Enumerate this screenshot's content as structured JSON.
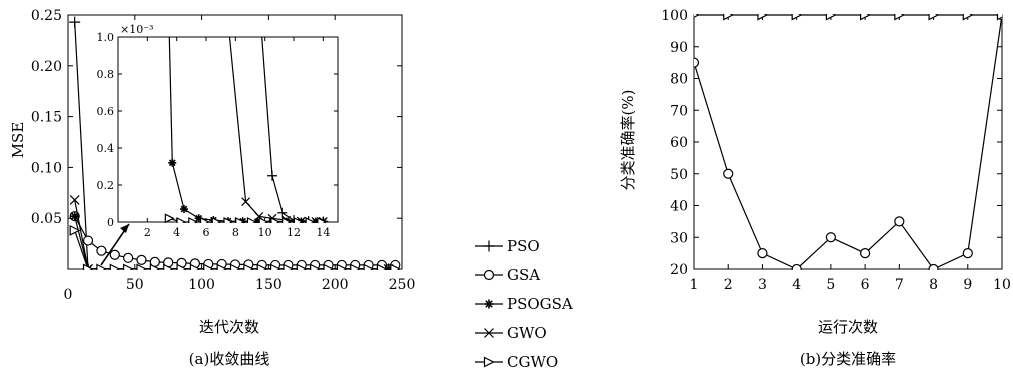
{
  "chart_data": [
    {
      "type": "line",
      "caption": "(a)收敛曲线",
      "xlabel": "迭代次数",
      "ylabel": "MSE",
      "xlim": [
        0,
        250
      ],
      "ylim": [
        0,
        0.25
      ],
      "xticks": [
        "0",
        "50",
        "100",
        "150",
        "200",
        "250"
      ],
      "yticks": [
        "0.05",
        "0.10",
        "0.15",
        "0.20",
        "0.25"
      ],
      "series": [
        {
          "name": "PSO",
          "marker": "plus",
          "x": [
            5,
            15,
            240
          ],
          "y": [
            0.243,
            0.0003,
            0.0001
          ]
        },
        {
          "name": "GSA",
          "marker": "circle",
          "x": [
            5,
            15,
            25,
            35,
            45,
            55,
            65,
            75,
            85,
            95,
            105,
            115,
            125,
            135,
            145,
            155,
            165,
            175,
            185,
            195,
            205,
            215,
            225,
            235,
            245
          ],
          "y": [
            0.052,
            0.028,
            0.018,
            0.014,
            0.011,
            0.009,
            0.007,
            0.0065,
            0.006,
            0.0055,
            0.005,
            0.005,
            0.0045,
            0.0045,
            0.004,
            0.004,
            0.004,
            0.004,
            0.004,
            0.004,
            0.004,
            0.004,
            0.004,
            0.004,
            0.004
          ]
        },
        {
          "name": "PSOGSA",
          "marker": "star",
          "x": [
            5,
            15,
            240
          ],
          "y": [
            0.052,
            0.0002,
            0.0001
          ]
        },
        {
          "name": "GWO",
          "marker": "x",
          "x": [
            5,
            15,
            240
          ],
          "y": [
            0.068,
            0.0002,
            0.0001
          ]
        },
        {
          "name": "CGWO",
          "marker": "triangle",
          "x": [
            5,
            15,
            25,
            35,
            45,
            55,
            65,
            75,
            85,
            95,
            105,
            115,
            125,
            135,
            145,
            155,
            165,
            175,
            185,
            195,
            205,
            215,
            225,
            235,
            245
          ],
          "y": [
            0.038,
            0.0,
            0.0,
            0.0,
            0.0,
            0.0,
            0.0,
            0.0,
            0.0,
            0.0,
            0.0,
            0.0,
            0.0,
            0.0,
            0.0,
            0.0,
            0.0,
            0.0,
            0.0,
            0.0,
            0.0,
            0.0,
            0.0,
            0.0,
            0.0
          ]
        }
      ],
      "inset": {
        "xlim": [
          0,
          15
        ],
        "ylim": [
          0,
          1
        ],
        "exponent_label": "×10⁻³",
        "xticks": [
          "2",
          "4",
          "6",
          "8",
          "10",
          "12",
          "14"
        ],
        "yticks": [
          "0",
          "0.2",
          "0.4",
          "0.6",
          "0.8",
          "1.0"
        ],
        "series": [
          {
            "name": "PSO",
            "marker": "plus",
            "x": [
              9.8,
              10.5,
              11.2,
              12,
              13,
              14
            ],
            "y": [
              1.0,
              0.25,
              0.05,
              0.01,
              0.005,
              0.003
            ]
          },
          {
            "name": "GSA",
            "marker": "circle",
            "x": [],
            "y": []
          },
          {
            "name": "PSOGSA",
            "marker": "star",
            "x": [
              3.5,
              3.7,
              4.5,
              5.5,
              6.5,
              7.5,
              8.5,
              9.5,
              10.5,
              11.5,
              12.5,
              13.5,
              14.0
            ],
            "y": [
              1.0,
              0.32,
              0.07,
              0.02,
              0.01,
              0.005,
              0.004,
              0.003,
              0.003,
              0.003,
              0.003,
              0.003,
              0.003
            ]
          },
          {
            "name": "GWO",
            "marker": "x",
            "x": [
              7.6,
              8.7,
              9.6,
              10.5,
              11.5,
              12.5,
              13.5,
              14.0
            ],
            "y": [
              1.0,
              0.11,
              0.03,
              0.02,
              0.01,
              0.005,
              0.003,
              0.003
            ]
          },
          {
            "name": "CGWO",
            "marker": "triangle",
            "x": [
              3.5,
              4.3,
              5.1,
              5.9,
              6.7,
              7.5,
              8.3,
              9.1,
              9.9,
              10.7,
              11.5,
              12.3,
              13.1,
              13.9
            ],
            "y": [
              0.02,
              0.0,
              0.0,
              0.0,
              0.0,
              0.0,
              0.0,
              0.0,
              0.0,
              0.0,
              0.0,
              0.0,
              0.0,
              0.0
            ]
          }
        ]
      }
    },
    {
      "type": "line",
      "caption": "(b)分类准确率",
      "xlabel": "运行次数",
      "ylabel": "分类准确率(%)",
      "xlim": [
        1,
        10
      ],
      "ylim": [
        20,
        100
      ],
      "xticks": [
        "1",
        "2",
        "3",
        "4",
        "5",
        "6",
        "7",
        "8",
        "9",
        "10"
      ],
      "yticks": [
        "20",
        "30",
        "40",
        "50",
        "60",
        "70",
        "80",
        "90",
        "100"
      ],
      "series": [
        {
          "name": "GSA",
          "marker": "circle",
          "x": [
            1,
            2,
            3,
            4,
            5,
            6,
            7,
            8,
            9,
            10
          ],
          "y": [
            85,
            50,
            25,
            20,
            30,
            25,
            35,
            20,
            25,
            100
          ]
        },
        {
          "name": "CGWO",
          "marker": "triangle",
          "x": [
            1,
            2,
            3,
            4,
            5,
            6,
            7,
            8,
            9,
            10
          ],
          "y": [
            100,
            100,
            100,
            100,
            100,
            100,
            100,
            100,
            100,
            100
          ]
        }
      ]
    }
  ],
  "legend": {
    "items": [
      {
        "label": "PSO",
        "marker": "plus"
      },
      {
        "label": "GSA",
        "marker": "circle"
      },
      {
        "label": "PSOGSA",
        "marker": "star"
      },
      {
        "label": "GWO",
        "marker": "x"
      },
      {
        "label": "CGWO",
        "marker": "triangle"
      }
    ]
  }
}
